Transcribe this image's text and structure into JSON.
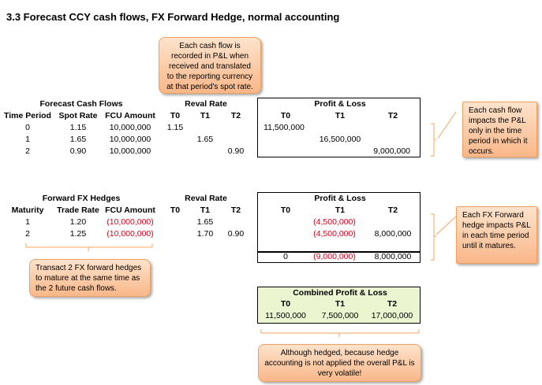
{
  "title": "3.3 Forecast CCY cash flows, FX Forward Hedge, normal accounting",
  "callouts": {
    "top": "Each cash flow is recorded in P&L when received and translated to the reporting currency at that period's spot rate.",
    "cash_flow": "Each cash flow impacts the P&L only in the time period in which it occurs.",
    "hedges": "Transact 2 FX forward hedges to mature at the same time as the 2 future cash flows.",
    "forward": "Each FX Forward hedge impacts P&L in each time period until it matures.",
    "combined": "Although hedged, because hedge accounting is not applied the overall P&L is very volatile!"
  },
  "forecast": {
    "title": "Forecast Cash Flows",
    "reval_title": "Reval Rate",
    "headers": [
      "Time Period",
      "Spot Rate",
      "FCU Amount",
      "T0",
      "T1",
      "T2"
    ],
    "rows": [
      {
        "period": "0",
        "spot": "1.15",
        "amount": "10,000,000",
        "t0": "1.15",
        "t1": "",
        "t2": ""
      },
      {
        "period": "1",
        "spot": "1.65",
        "amount": "10,000,000",
        "t0": "",
        "t1": "1.65",
        "t2": ""
      },
      {
        "period": "2",
        "spot": "0.90",
        "amount": "10,000,000",
        "t0": "",
        "t1": "",
        "t2": "0.90"
      }
    ],
    "pl": {
      "title": "Profit & Loss",
      "headers": [
        "T0",
        "T1",
        "T2"
      ],
      "rows": [
        [
          "11,500,000",
          "",
          ""
        ],
        [
          "",
          "16,500,000",
          ""
        ],
        [
          "",
          "",
          "9,000,000"
        ]
      ]
    }
  },
  "hedges": {
    "title": "Forward FX Hedges",
    "reval_title": "Reval Rate",
    "headers": [
      "Maturity",
      "Trade Rate",
      "FCU Amount",
      "T0",
      "T1",
      "T2"
    ],
    "rows": [
      {
        "maturity": "1",
        "rate": "1.20",
        "amount": "(10,000,000)",
        "t0": "",
        "t1": "1.65",
        "t2": ""
      },
      {
        "maturity": "2",
        "rate": "1.25",
        "amount": "(10,000,000)",
        "t0": "",
        "t1": "1.70",
        "t2": "0.90"
      }
    ],
    "pl": {
      "title": "Profit & Loss",
      "headers": [
        "T0",
        "T1",
        "T2"
      ],
      "rows": [
        [
          "",
          "(4,500,000)",
          ""
        ],
        [
          "",
          "(4,500,000)",
          "8,000,000"
        ]
      ],
      "total": [
        "0",
        "(9,000,000)",
        "8,000,000"
      ]
    }
  },
  "combined": {
    "title": "Combined Profit & Loss",
    "headers": [
      "T0",
      "T1",
      "T2"
    ],
    "values": [
      "11,500,000",
      "7,500,000",
      "17,000,000"
    ],
    "fill": "#ebf5d0"
  }
}
